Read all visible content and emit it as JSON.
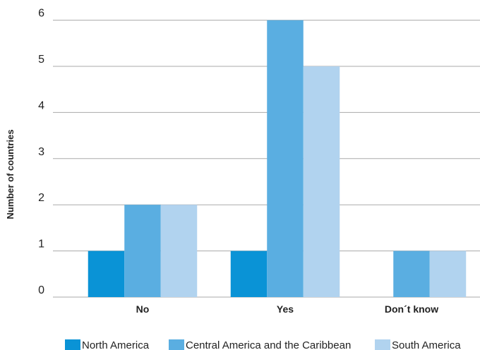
{
  "chart_data": {
    "type": "bar",
    "categories": [
      "No",
      "Yes",
      "Don´t know"
    ],
    "series": [
      {
        "name": "North America",
        "values": [
          1,
          1,
          0
        ],
        "color": "#0a93d6"
      },
      {
        "name": "Central America and the Caribbean",
        "values": [
          2,
          6,
          1
        ],
        "color": "#5aaee1"
      },
      {
        "name": "South America",
        "values": [
          2,
          5,
          1
        ],
        "color": "#b1d3ef"
      }
    ],
    "title": "",
    "xlabel": "",
    "ylabel": "Number of countries",
    "ylim": [
      0,
      6
    ],
    "yticks": [
      0,
      1,
      2,
      3,
      4,
      5,
      6
    ],
    "grid": true,
    "grid_color": "#aaaaaa",
    "legend_position": "bottom"
  }
}
